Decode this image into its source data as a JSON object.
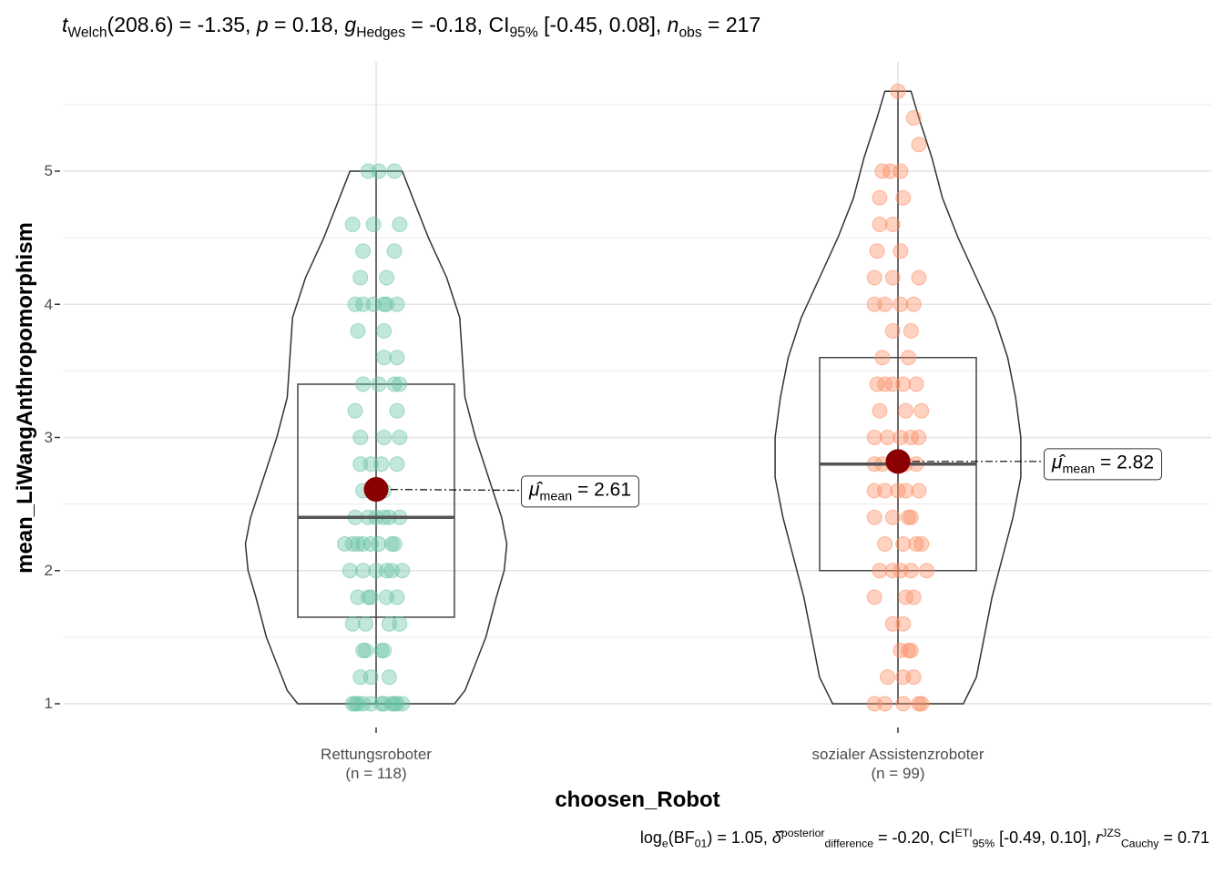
{
  "title": {
    "t_label": "t",
    "t_sub": "Welch",
    "t_value": "(208.6) = -1.35, ",
    "p_label": "p",
    "p_value": " = 0.18, ",
    "g_label": "g",
    "g_sub": "Hedges",
    "g_value": " = -0.18, CI",
    "ci_sub": "95%",
    "ci_value": " [-0.45, 0.08], ",
    "n_label": "n",
    "n_sub": "obs",
    "n_value": " = 217"
  },
  "caption": {
    "log_prefix": "log",
    "log_sub": "e",
    "bf": "(BF",
    "bf_sub": "01",
    "bf_value": ") = 1.05, ",
    "delta": "δ",
    "delta_sup": "posterior",
    "delta_sub": "difference",
    "delta_value": " = -0.20, CI",
    "ci_sup": "ETI",
    "ci_sub": "95%",
    "ci_value": " [-0.49, 0.10], ",
    "r_label": "r",
    "r_sup": "JZS",
    "r_sub": "Cauchy",
    "r_value": " = 0.71"
  },
  "chart_data": {
    "type": "scatter",
    "subtype": "violin-box-jitter",
    "xlabel": "choosen_Robot",
    "ylabel": "mean_LiWangAnthropomorphism",
    "ylim": [
      0.9,
      5.65
    ],
    "yticks": [
      1,
      2,
      3,
      4,
      5
    ],
    "grid": true,
    "categories": [
      {
        "name": "Rettungsroboter",
        "n_label": "(n = 118)",
        "color": "#66C2A5",
        "box": {
          "q1": 1.65,
          "median": 2.4,
          "q3": 3.4,
          "min": 1.0,
          "max": 5.0
        },
        "violin": {
          "y": [
            1.0,
            1.1,
            1.3,
            1.5,
            1.8,
            2.0,
            2.2,
            2.4,
            2.7,
            3.0,
            3.3,
            3.6,
            3.9,
            4.2,
            4.5,
            4.8,
            5.0
          ],
          "w": [
            0.3,
            0.34,
            0.38,
            0.42,
            0.46,
            0.49,
            0.5,
            0.48,
            0.43,
            0.38,
            0.34,
            0.33,
            0.32,
            0.27,
            0.2,
            0.14,
            0.1
          ]
        },
        "mean": 2.61,
        "mean_label": "= 2.61",
        "points": [
          [
            -0.08,
            1
          ],
          [
            -0.07,
            1
          ],
          [
            -0.05,
            1
          ],
          [
            -0.02,
            1
          ],
          [
            0.02,
            1
          ],
          [
            0.03,
            1
          ],
          [
            0.06,
            1
          ],
          [
            0.07,
            1
          ],
          [
            0.08,
            1
          ],
          [
            0.1,
            1
          ],
          [
            -0.09,
            1
          ],
          [
            -0.06,
            1.2
          ],
          [
            -0.02,
            1.2
          ],
          [
            0.05,
            1.2
          ],
          [
            -0.04,
            1.4
          ],
          [
            0.02,
            1.4
          ],
          [
            0.03,
            1.4
          ],
          [
            -0.05,
            1.4
          ],
          [
            -0.09,
            1.6
          ],
          [
            -0.04,
            1.6
          ],
          [
            0.05,
            1.6
          ],
          [
            0.09,
            1.6
          ],
          [
            -0.07,
            1.8
          ],
          [
            -0.02,
            1.8
          ],
          [
            0.04,
            1.8
          ],
          [
            0.08,
            1.8
          ],
          [
            -0.03,
            1.8
          ],
          [
            -0.1,
            2
          ],
          [
            -0.05,
            2
          ],
          [
            0,
            2
          ],
          [
            0.04,
            2
          ],
          [
            0.06,
            2
          ],
          [
            0.1,
            2
          ],
          [
            -0.12,
            2.2
          ],
          [
            -0.09,
            2.2
          ],
          [
            -0.05,
            2.2
          ],
          [
            -0.02,
            2.2
          ],
          [
            0.01,
            2.2
          ],
          [
            0.06,
            2.2
          ],
          [
            0.07,
            2.2
          ],
          [
            -0.07,
            2.2
          ],
          [
            -0.08,
            2.4
          ],
          [
            -0.03,
            2.4
          ],
          [
            0.0,
            2.4
          ],
          [
            0.03,
            2.4
          ],
          [
            0.05,
            2.4
          ],
          [
            0.09,
            2.4
          ],
          [
            -0.05,
            2.6
          ],
          [
            0.03,
            2.6
          ],
          [
            -0.06,
            2.8
          ],
          [
            -0.02,
            2.8
          ],
          [
            0.02,
            2.8
          ],
          [
            0.08,
            2.8
          ],
          [
            -0.06,
            3
          ],
          [
            0.03,
            3
          ],
          [
            0.09,
            3
          ],
          [
            -0.08,
            3.2
          ],
          [
            0.08,
            3.2
          ],
          [
            -0.05,
            3.4
          ],
          [
            0.01,
            3.4
          ],
          [
            0.07,
            3.4
          ],
          [
            0.09,
            3.4
          ],
          [
            0.03,
            3.6
          ],
          [
            0.08,
            3.6
          ],
          [
            -0.07,
            3.8
          ],
          [
            0.03,
            3.8
          ],
          [
            -0.08,
            4
          ],
          [
            -0.05,
            4
          ],
          [
            -0.01,
            4
          ],
          [
            0.03,
            4
          ],
          [
            0.04,
            4
          ],
          [
            0.08,
            4
          ],
          [
            -0.06,
            4.2
          ],
          [
            0.04,
            4.2
          ],
          [
            -0.05,
            4.4
          ],
          [
            0.07,
            4.4
          ],
          [
            -0.09,
            4.6
          ],
          [
            -0.01,
            4.6
          ],
          [
            0.09,
            4.6
          ],
          [
            -0.03,
            5
          ],
          [
            0.01,
            5
          ],
          [
            0.07,
            5
          ]
        ]
      },
      {
        "name": "sozialer Assistenzroboter",
        "n_label": "(n = 99)",
        "color": "#FC8D62",
        "box": {
          "q1": 2.0,
          "median": 2.8,
          "q3": 3.6,
          "min": 1.0,
          "max": 5.6
        },
        "violin": {
          "y": [
            1.0,
            1.2,
            1.5,
            1.8,
            2.1,
            2.4,
            2.7,
            3.0,
            3.3,
            3.6,
            3.9,
            4.2,
            4.5,
            4.8,
            5.1,
            5.4,
            5.6
          ],
          "w": [
            0.25,
            0.3,
            0.33,
            0.36,
            0.4,
            0.44,
            0.47,
            0.47,
            0.45,
            0.42,
            0.37,
            0.3,
            0.23,
            0.17,
            0.13,
            0.08,
            0.05
          ]
        },
        "mean": 2.82,
        "mean_label": "= 2.82",
        "points": [
          [
            -0.09,
            1
          ],
          [
            -0.05,
            1
          ],
          [
            0.02,
            1
          ],
          [
            0.08,
            1
          ],
          [
            0.09,
            1
          ],
          [
            -0.04,
            1.2
          ],
          [
            0.02,
            1.2
          ],
          [
            0.06,
            1.2
          ],
          [
            0.01,
            1.4
          ],
          [
            0.04,
            1.4
          ],
          [
            0.05,
            1.4
          ],
          [
            -0.02,
            1.6
          ],
          [
            0.02,
            1.6
          ],
          [
            -0.09,
            1.8
          ],
          [
            0.03,
            1.8
          ],
          [
            0.06,
            1.8
          ],
          [
            -0.07,
            2
          ],
          [
            -0.02,
            2
          ],
          [
            0.01,
            2
          ],
          [
            0.05,
            2
          ],
          [
            0.11,
            2
          ],
          [
            -0.05,
            2.2
          ],
          [
            0.02,
            2.2
          ],
          [
            0.07,
            2.2
          ],
          [
            0.09,
            2.2
          ],
          [
            -0.09,
            2.4
          ],
          [
            -0.02,
            2.4
          ],
          [
            0.04,
            2.4
          ],
          [
            0.05,
            2.4
          ],
          [
            -0.09,
            2.6
          ],
          [
            -0.05,
            2.6
          ],
          [
            0.0,
            2.6
          ],
          [
            0.03,
            2.6
          ],
          [
            0.08,
            2.6
          ],
          [
            -0.09,
            2.8
          ],
          [
            -0.06,
            2.8
          ],
          [
            -0.02,
            2.8
          ],
          [
            0.03,
            2.8
          ],
          [
            0.07,
            2.8
          ],
          [
            -0.09,
            3
          ],
          [
            -0.04,
            3
          ],
          [
            0.01,
            3
          ],
          [
            0.05,
            3
          ],
          [
            0.08,
            3
          ],
          [
            -0.07,
            3.2
          ],
          [
            0.03,
            3.2
          ],
          [
            0.09,
            3.2
          ],
          [
            -0.08,
            3.4
          ],
          [
            -0.05,
            3.4
          ],
          [
            -0.02,
            3.4
          ],
          [
            0.02,
            3.4
          ],
          [
            0.07,
            3.4
          ],
          [
            -0.06,
            3.6
          ],
          [
            0.04,
            3.6
          ],
          [
            -0.02,
            3.8
          ],
          [
            0.05,
            3.8
          ],
          [
            -0.09,
            4
          ],
          [
            -0.05,
            4
          ],
          [
            0.01,
            4
          ],
          [
            0.06,
            4
          ],
          [
            -0.09,
            4.2
          ],
          [
            -0.02,
            4.2
          ],
          [
            0.08,
            4.2
          ],
          [
            -0.08,
            4.4
          ],
          [
            0.01,
            4.4
          ],
          [
            -0.07,
            4.6
          ],
          [
            -0.02,
            4.6
          ],
          [
            -0.07,
            4.8
          ],
          [
            0.02,
            4.8
          ],
          [
            -0.06,
            5
          ],
          [
            -0.03,
            5
          ],
          [
            0.01,
            5
          ],
          [
            0.08,
            5.2
          ],
          [
            0.06,
            5.4
          ],
          [
            0.0,
            5.6
          ]
        ]
      }
    ]
  }
}
